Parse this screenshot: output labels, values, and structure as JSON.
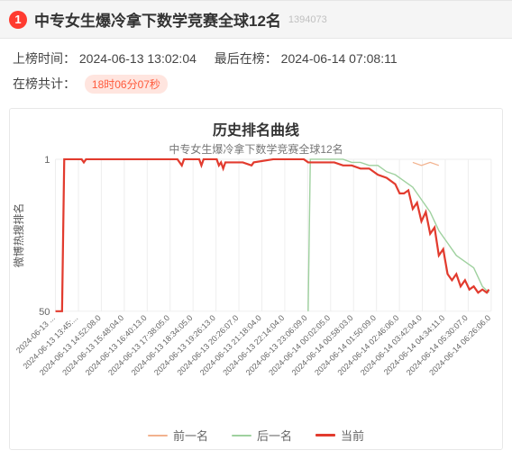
{
  "header": {
    "rank_badge": "1",
    "title": "中专女生爆冷拿下数学竞赛全球12名",
    "side_id": "1394073"
  },
  "meta": {
    "listed_label": "上榜时间：",
    "listed_value": "2024-06-13 13:02:04",
    "last_label": "最后在榜：",
    "last_value": "2024-06-14 07:08:11",
    "duration_label": "在榜共计：",
    "duration_badge": "18时06分07秒"
  },
  "chart": {
    "title": "历史排名曲线",
    "subtitle": "中专女生爆冷拿下数学竞赛全球12名",
    "y_axis_label": "微博热搜排名",
    "ylim": [
      1,
      50
    ],
    "yticks": [
      1,
      50
    ],
    "y_inverted": true,
    "x_labels": [
      "2024-06-13 ...",
      "2024-06-13 13:45:...",
      "2024-06-13 14:52:08.0",
      "2024-06-13 15:48:04.0",
      "2024-06-13 16:40:13.0",
      "2024-06-13 17:38:05.0",
      "2024-06-13 18:34:05.0",
      "2024-06-13 19:26:13.0",
      "2024-06-13 20:26:07.0",
      "2024-06-13 21:18:04.0",
      "2024-06-13 22:14:04.0",
      "2024-06-13 23:06:09.0",
      "2024-06-14 00:02:05.0",
      "2024-06-14 00:58:03.0",
      "2024-06-14 01:50:09.0",
      "2024-06-14 02:46:06.0",
      "2024-06-14 03:42:04.0",
      "2024-06-14 04:34:11.0",
      "2024-06-14 05:30:07.0",
      "2024-06-14 06:26:06.0"
    ],
    "x_label_rotation": -45,
    "colors": {
      "background": "#ffffff",
      "grid": "#eeeeee",
      "prev": "#f2b28e",
      "next": "#9fd19f",
      "current": "#e23b2e"
    },
    "line_widths": {
      "prev": 1.2,
      "next": 1.4,
      "current": 2.2
    },
    "series": {
      "prev": [
        [
          0.82,
          2
        ],
        [
          0.84,
          3
        ],
        [
          0.86,
          2
        ],
        [
          0.88,
          3
        ]
      ],
      "next": [
        [
          0.58,
          50
        ],
        [
          0.585,
          1
        ],
        [
          0.6,
          1
        ],
        [
          0.64,
          1
        ],
        [
          0.66,
          1
        ],
        [
          0.68,
          2
        ],
        [
          0.7,
          2
        ],
        [
          0.72,
          3
        ],
        [
          0.74,
          3
        ],
        [
          0.76,
          5
        ],
        [
          0.78,
          6
        ],
        [
          0.8,
          8
        ],
        [
          0.82,
          10
        ],
        [
          0.84,
          14
        ],
        [
          0.86,
          18
        ],
        [
          0.88,
          24
        ],
        [
          0.9,
          28
        ],
        [
          0.92,
          32
        ],
        [
          0.94,
          34
        ],
        [
          0.96,
          36
        ],
        [
          0.98,
          42
        ],
        [
          0.995,
          44
        ]
      ],
      "current": [
        [
          0.0,
          50
        ],
        [
          0.015,
          50
        ],
        [
          0.02,
          1
        ],
        [
          0.04,
          1
        ],
        [
          0.05,
          1
        ],
        [
          0.06,
          1
        ],
        [
          0.065,
          2
        ],
        [
          0.07,
          1
        ],
        [
          0.1,
          1
        ],
        [
          0.14,
          1
        ],
        [
          0.18,
          1
        ],
        [
          0.22,
          1
        ],
        [
          0.26,
          1
        ],
        [
          0.28,
          1
        ],
        [
          0.29,
          3
        ],
        [
          0.295,
          1
        ],
        [
          0.33,
          1
        ],
        [
          0.335,
          3
        ],
        [
          0.34,
          1
        ],
        [
          0.37,
          1
        ],
        [
          0.375,
          3
        ],
        [
          0.38,
          2
        ],
        [
          0.385,
          4
        ],
        [
          0.39,
          2
        ],
        [
          0.4,
          2
        ],
        [
          0.43,
          2
        ],
        [
          0.45,
          3
        ],
        [
          0.455,
          2
        ],
        [
          0.5,
          1
        ],
        [
          0.55,
          1
        ],
        [
          0.57,
          1
        ],
        [
          0.58,
          2
        ],
        [
          0.6,
          2
        ],
        [
          0.62,
          2
        ],
        [
          0.64,
          2
        ],
        [
          0.66,
          3
        ],
        [
          0.68,
          3
        ],
        [
          0.7,
          4
        ],
        [
          0.72,
          4
        ],
        [
          0.74,
          6
        ],
        [
          0.76,
          7
        ],
        [
          0.78,
          9
        ],
        [
          0.79,
          12
        ],
        [
          0.8,
          12
        ],
        [
          0.81,
          11
        ],
        [
          0.82,
          17
        ],
        [
          0.83,
          15
        ],
        [
          0.84,
          21
        ],
        [
          0.85,
          18
        ],
        [
          0.86,
          25
        ],
        [
          0.87,
          23
        ],
        [
          0.88,
          32
        ],
        [
          0.89,
          30
        ],
        [
          0.9,
          38
        ],
        [
          0.91,
          40
        ],
        [
          0.92,
          38
        ],
        [
          0.93,
          42
        ],
        [
          0.94,
          40
        ],
        [
          0.95,
          43
        ],
        [
          0.96,
          42
        ],
        [
          0.97,
          44
        ],
        [
          0.98,
          43
        ],
        [
          0.99,
          44
        ],
        [
          0.995,
          43
        ]
      ]
    },
    "legend": [
      {
        "key": "prev",
        "label": "前一名"
      },
      {
        "key": "next",
        "label": "后一名"
      },
      {
        "key": "current",
        "label": "当前"
      }
    ]
  }
}
